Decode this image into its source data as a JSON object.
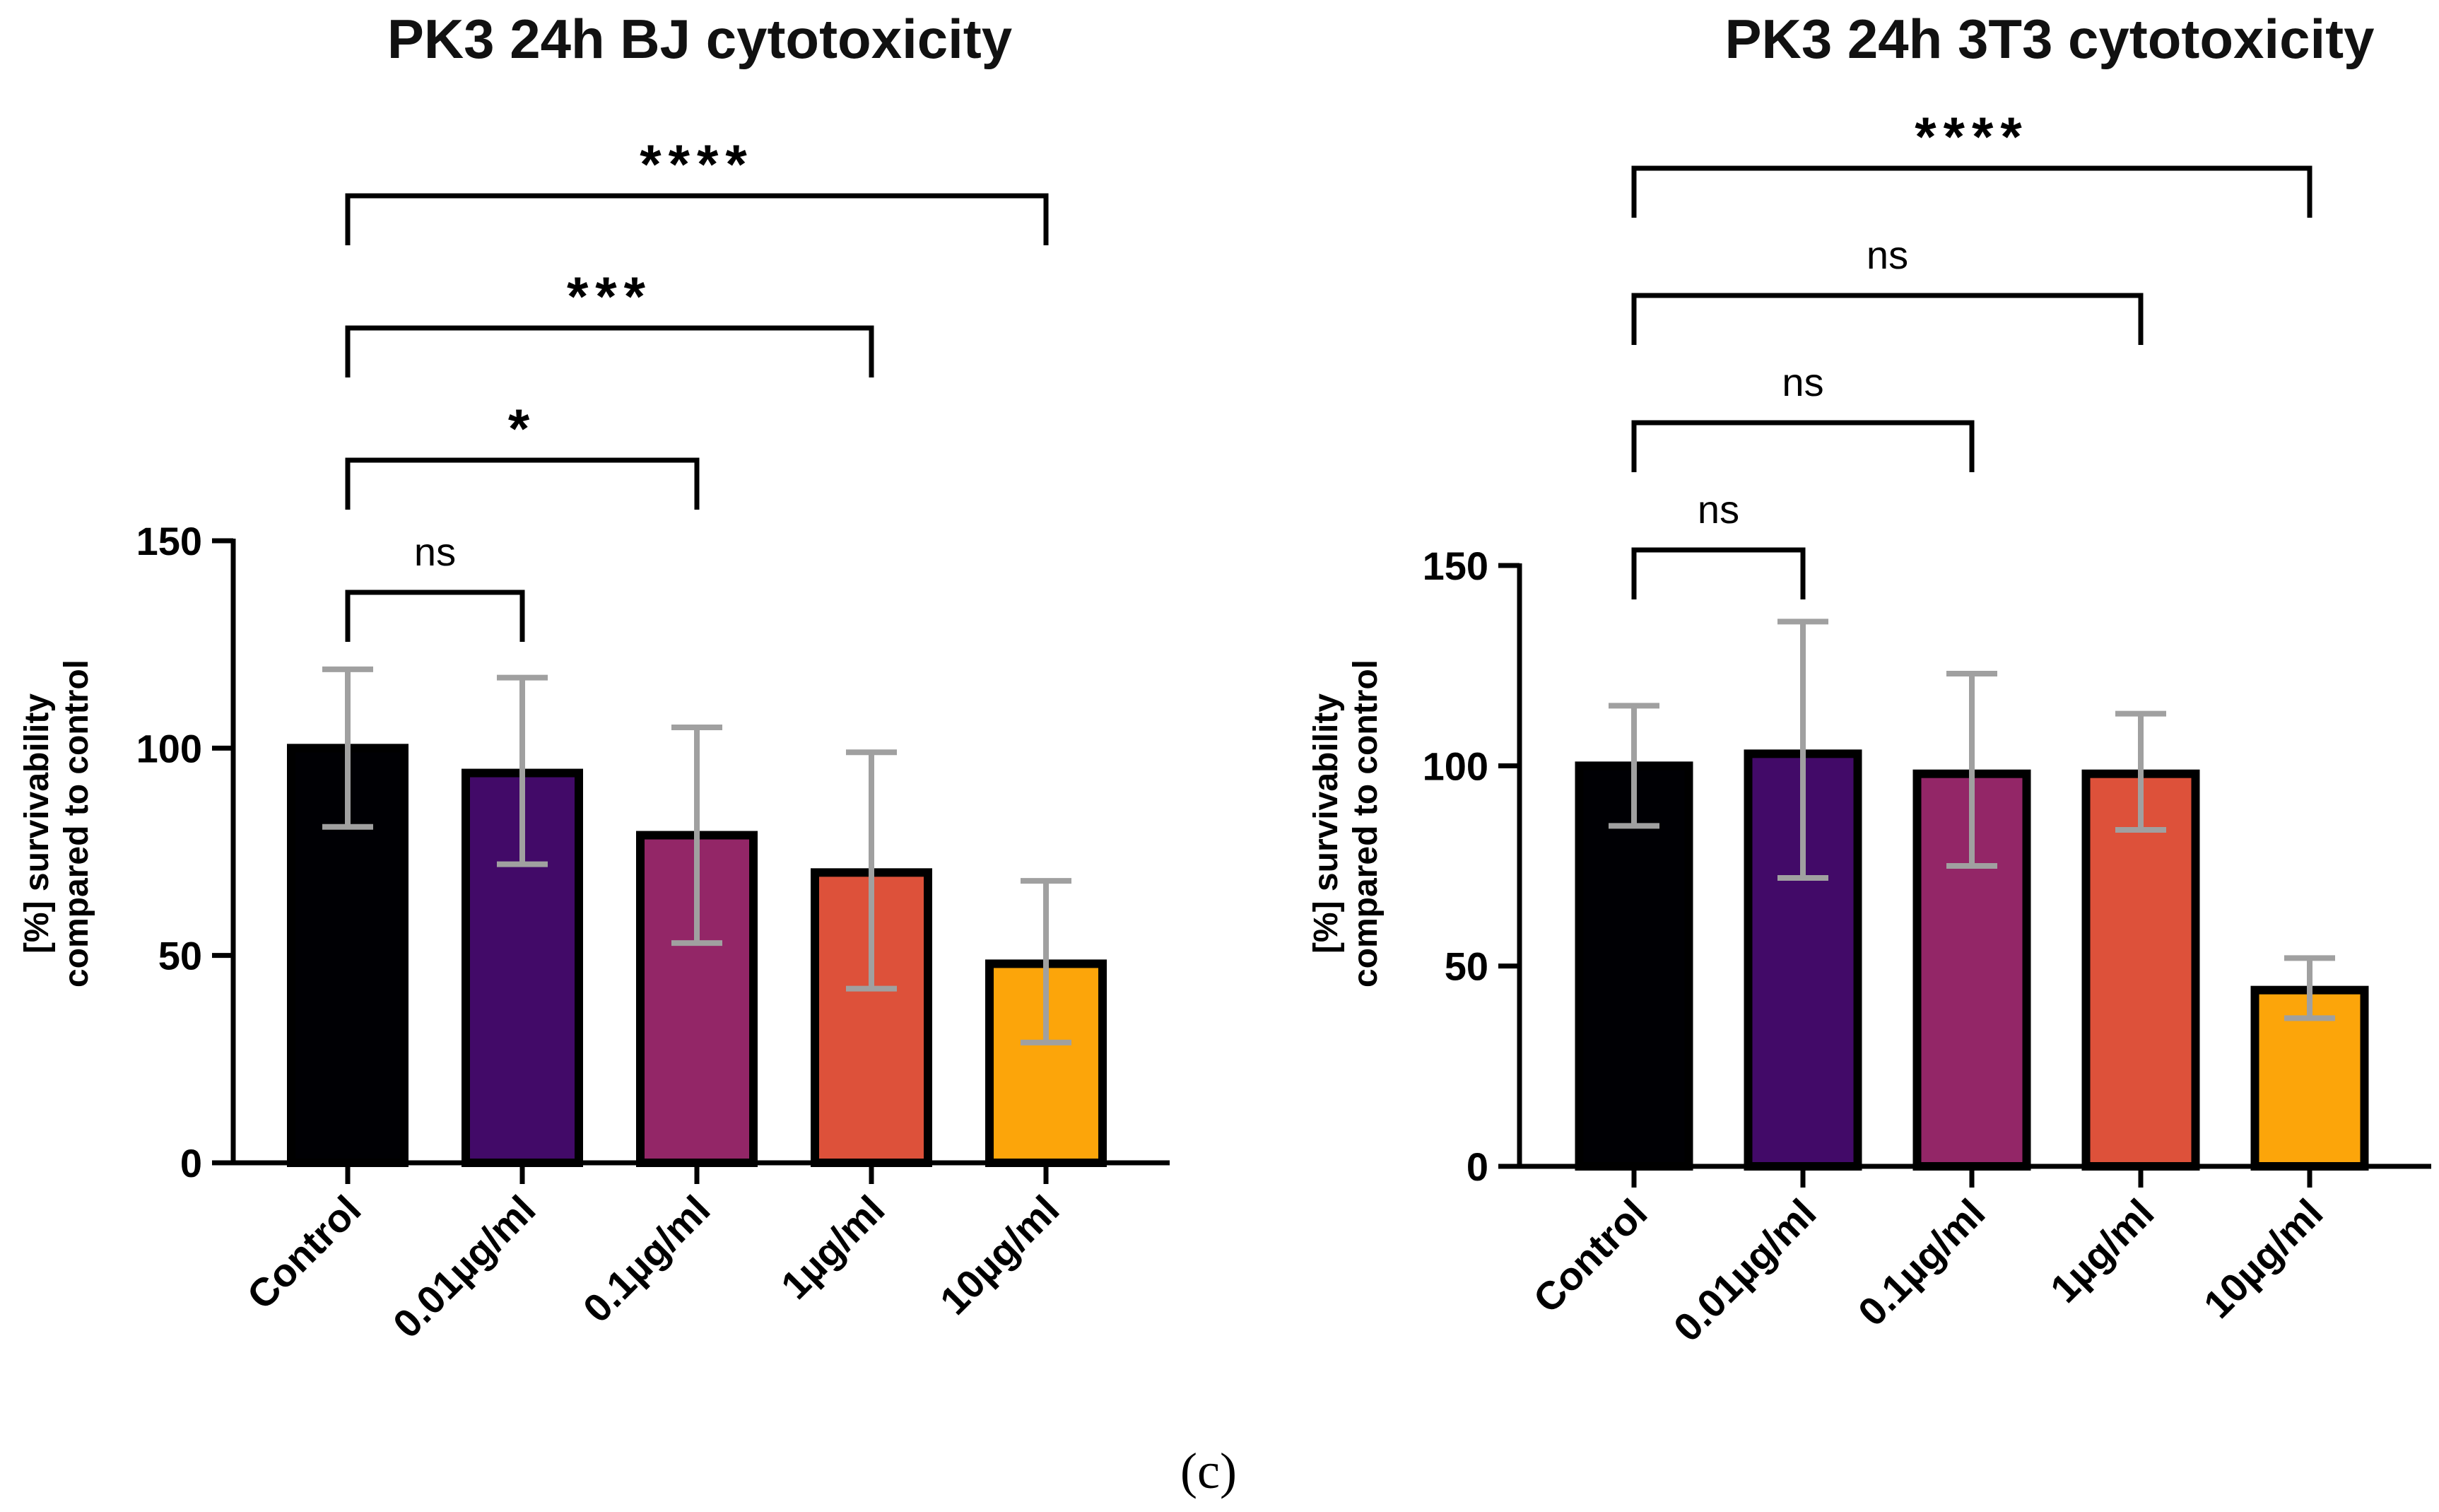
{
  "figure": {
    "panel_label": "(c)"
  },
  "chart_data": [
    {
      "type": "bar",
      "title": "PK3 24h BJ cytotoxicity",
      "ylabel_line1": "[%] survivability",
      "ylabel_line2": "compared to control",
      "xlabel": "",
      "ylim": [
        0,
        150
      ],
      "yticks": [
        0,
        50,
        100,
        150
      ],
      "categories": [
        "Control",
        "0.01µg/ml",
        "0.1µg/ml",
        "1µg/ml",
        "10µg/ml"
      ],
      "values": [
        100,
        94,
        79,
        70,
        48
      ],
      "errors": [
        [
          81,
          119
        ],
        [
          72,
          117
        ],
        [
          53,
          105
        ],
        [
          42,
          99
        ],
        [
          29,
          68
        ]
      ],
      "colors": [
        "#000004",
        "#420a68",
        "#932667",
        "#dd513a",
        "#fca50a"
      ],
      "significance": [
        {
          "from": 0,
          "to": 1,
          "label": "ns",
          "level": 0
        },
        {
          "from": 0,
          "to": 2,
          "label": "*",
          "level": 1
        },
        {
          "from": 0,
          "to": 3,
          "label": "***",
          "level": 2
        },
        {
          "from": 0,
          "to": 4,
          "label": "****",
          "level": 3
        }
      ]
    },
    {
      "type": "bar",
      "title": "PK3 24h 3T3 cytotoxicity",
      "ylabel_line1": "[%] survivability",
      "ylabel_line2": "compared to control",
      "xlabel": "",
      "ylim": [
        0,
        150
      ],
      "yticks": [
        0,
        50,
        100,
        150
      ],
      "categories": [
        "Control",
        "0.01µg/ml",
        "0.1µg/ml",
        "1µg/ml",
        "10µg/ml"
      ],
      "values": [
        100,
        103,
        98,
        98,
        44
      ],
      "errors": [
        [
          85,
          115
        ],
        [
          72,
          136
        ],
        [
          75,
          123
        ],
        [
          84,
          113
        ],
        [
          37,
          52
        ]
      ],
      "colors": [
        "#000004",
        "#420a68",
        "#932667",
        "#dd513a",
        "#fca50a"
      ],
      "significance": [
        {
          "from": 0,
          "to": 1,
          "label": "ns",
          "level": 0
        },
        {
          "from": 0,
          "to": 2,
          "label": "ns",
          "level": 1
        },
        {
          "from": 0,
          "to": 3,
          "label": "ns",
          "level": 2
        },
        {
          "from": 0,
          "to": 4,
          "label": "****",
          "level": 3
        }
      ]
    }
  ]
}
